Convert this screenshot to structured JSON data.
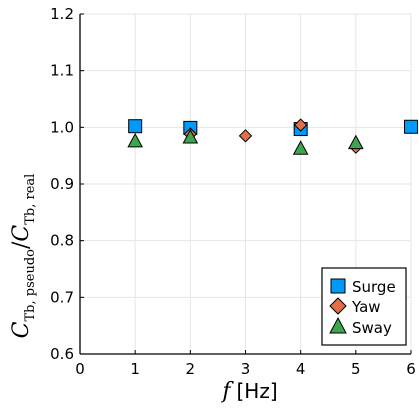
{
  "chart_data": {
    "type": "scatter",
    "xlabel_var": "f",
    "xlabel_unit": "[Hz]",
    "ylabel_main": "C",
    "ylabel_sub_num": "Tb, pseudo",
    "ylabel_sub_den": "Tb, real",
    "xlim": [
      0,
      6
    ],
    "ylim": [
      0.6,
      1.2
    ],
    "x_ticks": [
      0,
      1,
      2,
      3,
      4,
      5,
      6
    ],
    "y_ticks": [
      0.6,
      0.7,
      0.8,
      0.9,
      1.0,
      1.1,
      1.2
    ],
    "x_tick_labels": [
      "0",
      "1",
      "2",
      "3",
      "4",
      "5",
      "6"
    ],
    "y_tick_labels": [
      "0.6",
      "0.7",
      "0.8",
      "0.9",
      "1.0",
      "1.1",
      "1.2"
    ],
    "grid": true,
    "legend_position": "bottom-right",
    "series": [
      {
        "name": "Surge",
        "marker": "square",
        "color": "#009AFA",
        "x": [
          1,
          2,
          4,
          6
        ],
        "y": [
          1.002,
          0.999,
          0.997,
          1.001
        ]
      },
      {
        "name": "Yaw",
        "marker": "diamond",
        "color": "#E36F47",
        "x": [
          2,
          3,
          4,
          5
        ],
        "y": [
          0.988,
          0.985,
          1.004,
          0.965
        ]
      },
      {
        "name": "Sway",
        "marker": "triangle",
        "color": "#3EA44E",
        "x": [
          1,
          2,
          4,
          5
        ],
        "y": [
          0.976,
          0.983,
          0.963,
          0.973
        ]
      }
    ]
  }
}
